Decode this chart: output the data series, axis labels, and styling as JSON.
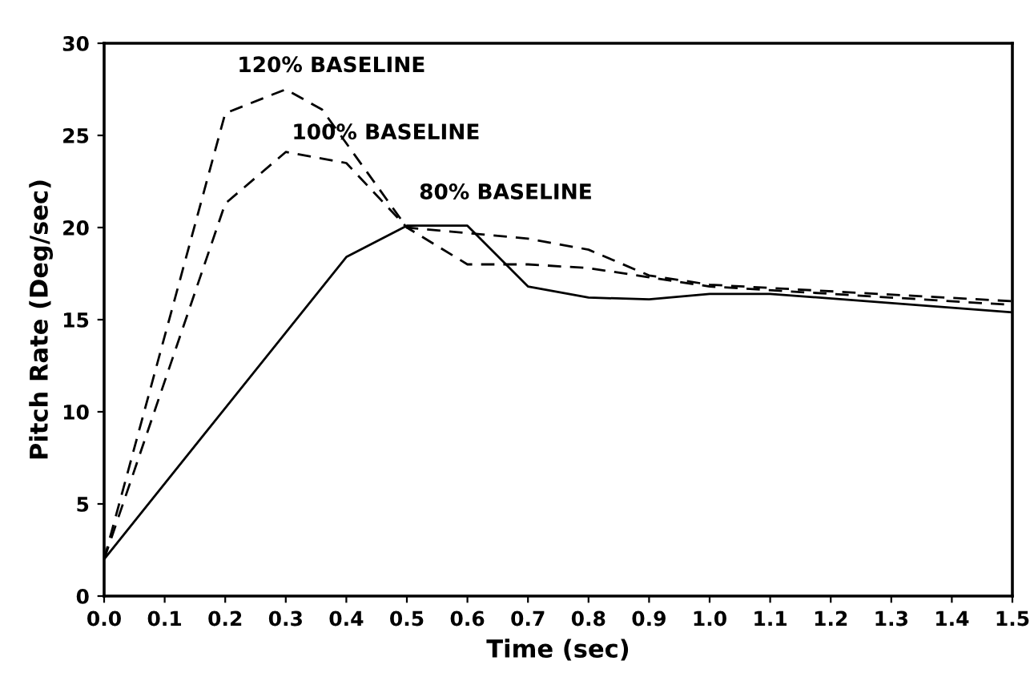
{
  "chart_data": {
    "type": "line",
    "xlabel": "Time (sec)",
    "ylabel": "Pitch Rate (Deg/sec)",
    "xlim": [
      0,
      1.5
    ],
    "ylim": [
      0,
      30
    ],
    "xticks": [
      {
        "value": 0,
        "label": "0.0"
      },
      0.1,
      0.2,
      0.3,
      0.4,
      0.5,
      0.6,
      0.7,
      0.8,
      0.9,
      {
        "value": 1,
        "label": "1.0"
      },
      1.1,
      1.2,
      1.3,
      1.4,
      1.5
    ],
    "yticks": [
      0,
      5,
      10,
      15,
      20,
      25,
      30
    ],
    "grid": false,
    "legend": false,
    "marker": "none",
    "series": [
      {
        "name": "120% BASELINE",
        "color": "#000000",
        "line_style": "dashed",
        "x": [
          0,
          0.2,
          0.3,
          0.36,
          0.5,
          0.6,
          0.7,
          0.8,
          0.9,
          1.0,
          1.5
        ],
        "values": [
          2,
          26.2,
          27.5,
          26.4,
          20,
          19.7,
          19.4,
          18.8,
          17.4,
          16.9,
          16
        ]
      },
      {
        "name": "100% BASELINE",
        "color": "#000000",
        "line_style": "dashed",
        "x": [
          0,
          0.2,
          0.3,
          0.4,
          0.5,
          0.6,
          0.7,
          0.8,
          0.9,
          1.0,
          1.5
        ],
        "values": [
          2,
          21.3,
          24.1,
          23.5,
          20,
          18,
          18,
          17.8,
          17.3,
          16.8,
          15.8
        ]
      },
      {
        "name": "80% BASELINE",
        "color": "#000000",
        "line_style": "solid",
        "x": [
          0,
          0.4,
          0.5,
          0.6,
          0.7,
          0.8,
          0.9,
          1.0,
          1.1,
          1.5
        ],
        "values": [
          2,
          18.4,
          20.1,
          20.1,
          16.8,
          16.2,
          16.1,
          16.4,
          16.4,
          15.4
        ]
      }
    ]
  }
}
